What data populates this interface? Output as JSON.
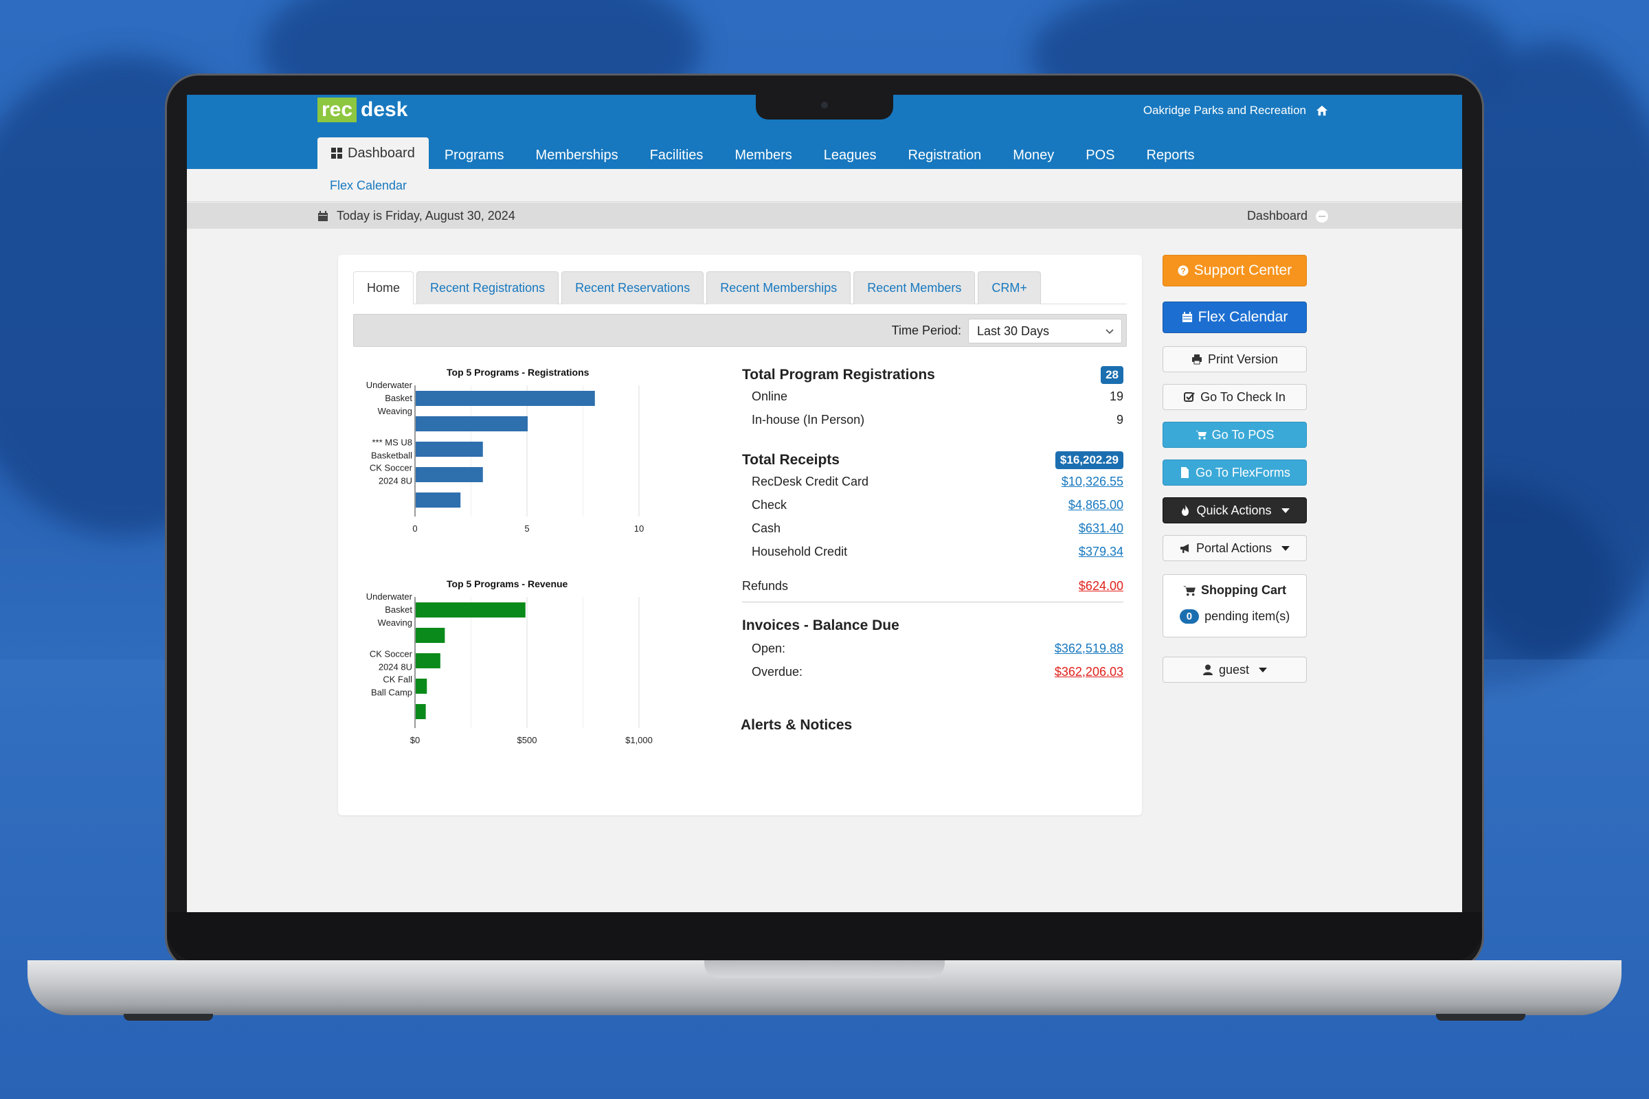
{
  "app": {
    "logo_part1": "rec",
    "logo_part2": "desk",
    "org_name": "Oakridge Parks and Recreation",
    "colors": {
      "primary": "#1778bf",
      "logo_green": "#8dc63f",
      "orange": "#f7941d",
      "accent_blue": "#1c6fd1",
      "cyan": "#3ba9d8",
      "bar_blue": "#2e6fae",
      "bar_green": "#0a8a1a",
      "red": "#e0201b"
    }
  },
  "nav": {
    "items": [
      {
        "label": "Dashboard",
        "icon": "dashboard-icon",
        "active": true
      },
      {
        "label": "Programs"
      },
      {
        "label": "Memberships"
      },
      {
        "label": "Facilities"
      },
      {
        "label": "Members"
      },
      {
        "label": "Leagues"
      },
      {
        "label": "Registration"
      },
      {
        "label": "Money"
      },
      {
        "label": "POS"
      },
      {
        "label": "Reports"
      }
    ],
    "sub_link": "Flex Calendar"
  },
  "datebar": {
    "date_text": "Today is Friday, August 30, 2024",
    "breadcrumb": "Dashboard"
  },
  "tabs": [
    {
      "label": "Home",
      "active": true
    },
    {
      "label": "Recent Registrations"
    },
    {
      "label": "Recent Reservations"
    },
    {
      "label": "Recent Memberships"
    },
    {
      "label": "Recent Members"
    },
    {
      "label": "CRM+"
    }
  ],
  "period": {
    "label": "Time Period:",
    "value": "Last 30 Days"
  },
  "chart_data": [
    {
      "type": "bar",
      "orientation": "horizontal",
      "title": "Top 5 Programs - Registrations",
      "category_labels": [
        "Underwater Basket Weaving",
        "",
        "*** MS U8 Basketball",
        "CK Soccer 2024 8U",
        ""
      ],
      "values": [
        8,
        5,
        3,
        3,
        2
      ],
      "xlim": [
        0,
        10
      ],
      "xticks": [
        "0",
        "5",
        "10"
      ],
      "grid": true,
      "color": "#2e6fae"
    },
    {
      "type": "bar",
      "orientation": "horizontal",
      "title": "Top 5 Programs - Revenue",
      "category_labels": [
        "Underwater Basket Weaving",
        "",
        "CK Soccer 2024 8U",
        "CK Fall Ball Camp",
        ""
      ],
      "values": [
        490,
        130,
        110,
        50,
        45
      ],
      "xlim": [
        0,
        1000
      ],
      "xticks": [
        "$0",
        "$500",
        "$1,000"
      ],
      "grid": true,
      "color": "#0a8a1a"
    }
  ],
  "stats": {
    "registrations": {
      "title": "Total Program Registrations",
      "total": "28",
      "rows": [
        {
          "label": "Online",
          "value": "19"
        },
        {
          "label": "In-house (In Person)",
          "value": "9"
        }
      ]
    },
    "receipts": {
      "title": "Total Receipts",
      "total": "$16,202.29",
      "rows": [
        {
          "label": "RecDesk Credit Card",
          "value": "$10,326.55"
        },
        {
          "label": "Check",
          "value": "$4,865.00"
        },
        {
          "label": "Cash",
          "value": "$631.40"
        },
        {
          "label": "Household Credit",
          "value": "$379.34"
        }
      ],
      "refunds_label": "Refunds",
      "refunds_value": "$624.00"
    },
    "invoices": {
      "title": "Invoices - Balance Due",
      "open_label": "Open:",
      "open_value": "$362,519.88",
      "overdue_label": "Overdue:",
      "overdue_value": "$362,206.03"
    },
    "alerts_title": "Alerts & Notices"
  },
  "sidebar": {
    "support": "Support Center",
    "flex_calendar": "Flex Calendar",
    "print": "Print Version",
    "check_in": "Go To Check In",
    "pos": "Go To POS",
    "flexforms": "Go To FlexForms",
    "quick_actions": "Quick Actions",
    "portal_actions": "Portal Actions",
    "cart_title": "Shopping Cart",
    "cart_count": "0",
    "cart_pending": "pending item(s)",
    "user": "guest"
  }
}
